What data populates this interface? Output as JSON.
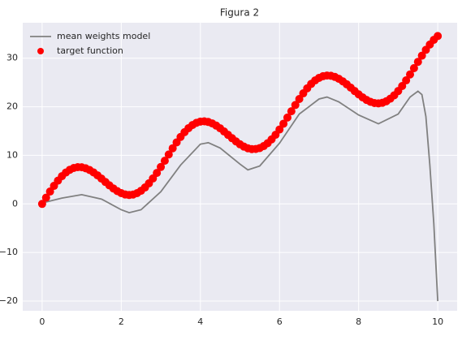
{
  "chart_data": {
    "type": "line",
    "title": "Figura 2",
    "xlim": [
      -0.49,
      10.49
    ],
    "ylim": [
      -22,
      37.3
    ],
    "xticks": [
      0,
      2,
      4,
      6,
      8,
      10
    ],
    "yticks": [
      {
        "value": -20,
        "label": "−20"
      },
      {
        "value": -10,
        "label": "−10"
      },
      0,
      10,
      20,
      30
    ],
    "grid": true,
    "legend": "upper left",
    "series": [
      {
        "name": "mean weights model",
        "color": "#808080",
        "type": "line",
        "x": [
          0,
          0.5,
          1,
          1.5,
          2,
          2.2,
          2.5,
          3,
          3.5,
          4,
          4.2,
          4.5,
          5,
          5.2,
          5.5,
          6,
          6.5,
          7,
          7.2,
          7.5,
          8,
          8.5,
          9,
          9.3,
          9.5,
          9.6,
          9.7,
          9.8,
          9.9,
          10
        ],
        "values": [
          0.2,
          1.2,
          1.9,
          1.0,
          -1.2,
          -1.8,
          -1.2,
          2.5,
          8.0,
          12.3,
          12.6,
          11.5,
          8.2,
          7.0,
          7.8,
          12.5,
          18.5,
          21.6,
          22.0,
          21.0,
          18.3,
          16.5,
          18.5,
          22.0,
          23.2,
          22.5,
          18.0,
          8.0,
          -4,
          -20
        ]
      },
      {
        "name": "target function",
        "color": "#ff0000",
        "type": "scatter",
        "x": [
          0,
          0.1,
          0.2,
          0.3,
          0.4,
          0.5,
          0.6,
          0.7,
          0.8,
          0.9,
          1,
          1.1,
          1.2,
          1.3,
          1.4,
          1.5,
          1.6,
          1.7,
          1.8,
          1.9,
          2,
          2.1,
          2.2,
          2.3,
          2.4,
          2.5,
          2.6,
          2.7,
          2.8,
          2.9,
          3,
          3.1,
          3.2,
          3.3,
          3.4,
          3.5,
          3.6,
          3.7,
          3.8,
          3.9,
          4,
          4.1,
          4.2,
          4.3,
          4.4,
          4.5,
          4.6,
          4.7,
          4.8,
          4.9,
          5,
          5.1,
          5.2,
          5.3,
          5.4,
          5.5,
          5.6,
          5.7,
          5.8,
          5.9,
          6,
          6.1,
          6.2,
          6.3,
          6.4,
          6.5,
          6.6,
          6.7,
          6.8,
          6.9,
          7,
          7.1,
          7.2,
          7.3,
          7.4,
          7.5,
          7.6,
          7.7,
          7.8,
          7.9,
          8,
          8.1,
          8.2,
          8.3,
          8.4,
          8.5,
          8.6,
          8.7,
          8.8,
          8.9,
          9,
          9.1,
          9.2,
          9.3,
          9.4,
          9.5,
          9.6,
          9.7,
          9.8,
          9.9,
          10
        ],
        "values": [
          0,
          1.29,
          2.55,
          3.72,
          4.79,
          5.71,
          6.46,
          7.03,
          7.4,
          7.57,
          7.55,
          7.34,
          6.98,
          6.48,
          5.88,
          5.21,
          4.51,
          3.82,
          3.19,
          2.64,
          2.22,
          1.94,
          1.84,
          1.93,
          2.22,
          2.71,
          3.38,
          4.24,
          5.24,
          6.38,
          7.6,
          8.88,
          10.18,
          11.46,
          12.67,
          13.79,
          14.77,
          15.59,
          16.24,
          16.69,
          16.95,
          17.0,
          16.87,
          16.57,
          16.12,
          15.56,
          14.91,
          14.22,
          13.53,
          12.87,
          12.28,
          11.8,
          11.46,
          11.29,
          11.3,
          11.5,
          11.9,
          12.5,
          13.29,
          14.23,
          15.32,
          16.51,
          17.78,
          19.07,
          20.36,
          21.6,
          22.76,
          23.8,
          24.7,
          25.42,
          25.95,
          26.29,
          26.43,
          26.38,
          26.14,
          25.75,
          25.23,
          24.62,
          23.94,
          23.24,
          22.56,
          21.94,
          21.41,
          21.01,
          20.76,
          20.69,
          20.82,
          21.14,
          21.66,
          22.36,
          23.24,
          24.27,
          25.43,
          26.66,
          27.95,
          29.25,
          30.52,
          31.72,
          32.81,
          33.77,
          34.56
        ]
      }
    ]
  }
}
